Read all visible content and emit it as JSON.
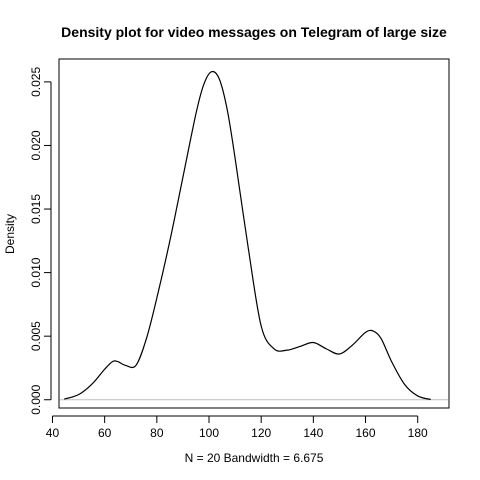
{
  "chart_data": {
    "type": "line",
    "title": "Density plot for video messages on Telegram of large size",
    "xlabel": "N = 20   Bandwidth = 6.675",
    "ylabel": "Density",
    "xlim": [
      42.5,
      192.0
    ],
    "ylim": [
      -0.00065,
      0.0268
    ],
    "xticks": [
      40,
      60,
      80,
      100,
      120,
      140,
      160,
      180
    ],
    "xtick_labels": [
      "40",
      "60",
      "80",
      "100",
      "120",
      "140",
      "160",
      "180"
    ],
    "yticks": [
      0.0,
      0.005,
      0.01,
      0.015,
      0.02,
      0.025
    ],
    "ytick_labels": [
      "0.000",
      "0.005",
      "0.010",
      "0.015",
      "0.020",
      "0.025"
    ],
    "baseline_y": 0,
    "grid": false,
    "series": [
      {
        "x": [
          44.5,
          50,
          55,
          60,
          63,
          65,
          68,
          72,
          76,
          80,
          85,
          90,
          95,
          98,
          101,
          104,
          107,
          110,
          115,
          120,
          125,
          130,
          135,
          140,
          145,
          150,
          155,
          160,
          163,
          166,
          170,
          175,
          180,
          185
        ],
        "y": [
          5e-05,
          0.0004,
          0.0012,
          0.0024,
          0.003,
          0.003,
          0.0027,
          0.0027,
          0.0048,
          0.008,
          0.0125,
          0.0175,
          0.0225,
          0.0248,
          0.0258,
          0.0252,
          0.0228,
          0.019,
          0.012,
          0.0058,
          0.004,
          0.0039,
          0.0042,
          0.0045,
          0.004,
          0.0036,
          0.0043,
          0.0053,
          0.0054,
          0.0048,
          0.003,
          0.0012,
          0.0003,
          2e-05
        ]
      }
    ],
    "colors": {
      "line": "#000000",
      "baseline": "#bebebe",
      "box": "#000000"
    }
  }
}
